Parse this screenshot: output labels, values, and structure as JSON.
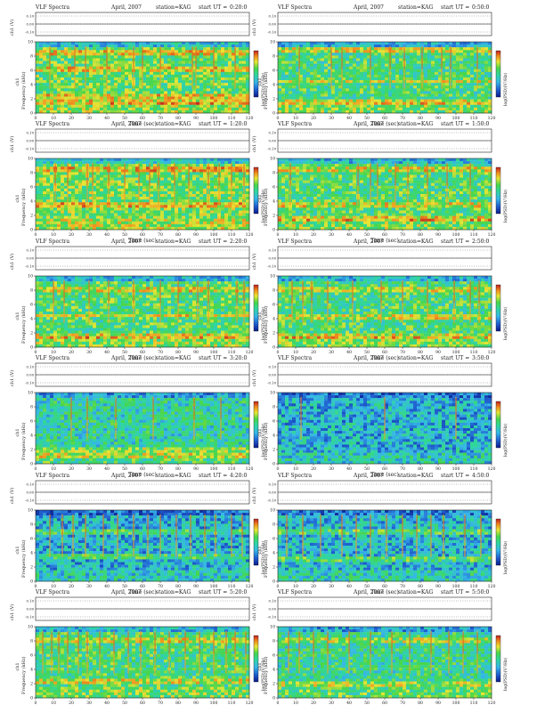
{
  "colors": {
    "background": "#ffffff",
    "axis": "#222222",
    "colormap": [
      "#0a1a8c",
      "#1f5fd0",
      "#36b6e8",
      "#2fd6a0",
      "#49d64a",
      "#e7e534",
      "#f08c1e",
      "#c11e1e"
    ]
  },
  "common": {
    "title_left": "VLF Spectra",
    "date": "April, 2007",
    "station": "station=KAG",
    "start_label": "start UT =",
    "ch1_label": "ch1 (V)",
    "ch1_ticks": [
      "0.10",
      "0.00",
      "-0.10"
    ],
    "freq_label": "Frequency (kHz)",
    "ch1_prefix": "ch1",
    "time_label": "Time (sec)",
    "colorbar_label": "log(PSD)(V²/Hz)"
  },
  "chart_data": [
    {
      "type": "heatmap",
      "panel": "left-row1",
      "start_ut": "0:20:0",
      "x_range": [
        0,
        120
      ],
      "y_range": [
        0,
        10
      ],
      "ch1_range": [
        -0.1,
        0.1
      ],
      "xticks": [
        0,
        10,
        20,
        30,
        40,
        50,
        60,
        70,
        80,
        90,
        100,
        110,
        120
      ],
      "yticks": [
        0,
        2,
        4,
        6,
        8,
        10
      ],
      "background_level": 0.55,
      "bands_khz": [
        1.6,
        2.3,
        6.0,
        8.6
      ],
      "bursts_sec": [
        8,
        22,
        28,
        40,
        55,
        60,
        70,
        88,
        90,
        100,
        112
      ]
    },
    {
      "type": "heatmap",
      "panel": "right-row1",
      "start_ut": "0:50:0",
      "x_range": [
        0,
        120
      ],
      "y_range": [
        0,
        10
      ],
      "ch1_range": [
        -0.1,
        0.1
      ],
      "xticks": [
        0,
        10,
        20,
        30,
        40,
        50,
        60,
        70,
        80,
        90,
        100,
        110,
        120
      ],
      "yticks": [
        0,
        2,
        4,
        6,
        8,
        10
      ],
      "background_level": 0.5,
      "bands_khz": [
        1.5,
        4.4,
        8.7
      ],
      "bursts_sec": [
        12,
        30,
        36,
        52,
        63,
        71,
        81,
        92,
        97,
        112
      ]
    },
    {
      "type": "heatmap",
      "panel": "left-row2",
      "start_ut": "1:20:0",
      "x_range": [
        0,
        120
      ],
      "y_range": [
        0,
        10
      ],
      "ch1_range": [
        -0.1,
        0.1
      ],
      "xticks": [
        0,
        10,
        20,
        30,
        40,
        50,
        60,
        70,
        80,
        90,
        100,
        110,
        120
      ],
      "yticks": [
        0,
        2,
        4,
        6,
        8,
        10
      ],
      "background_level": 0.58,
      "bands_khz": [
        3.4,
        8.6
      ],
      "bursts_sec": [
        11,
        18,
        29,
        32,
        41,
        50,
        58,
        64,
        69,
        78,
        86,
        97,
        103,
        110,
        117
      ]
    },
    {
      "type": "heatmap",
      "panel": "right-row2",
      "start_ut": "1:50:0",
      "x_range": [
        0,
        120
      ],
      "y_range": [
        0,
        10
      ],
      "ch1_range": [
        -0.1,
        0.1
      ],
      "xticks": [
        0,
        10,
        20,
        30,
        40,
        50,
        60,
        70,
        80,
        90,
        100,
        110,
        120
      ],
      "yticks": [
        0,
        2,
        4,
        6,
        8,
        10
      ],
      "background_level": 0.52,
      "bands_khz": [
        1.5,
        3.6,
        8.5
      ],
      "bursts_sec": [
        7,
        45,
        52,
        56,
        66,
        73,
        84,
        95,
        108
      ]
    },
    {
      "type": "heatmap",
      "panel": "left-row3",
      "start_ut": "2:20:0",
      "x_range": [
        0,
        120
      ],
      "y_range": [
        0,
        10
      ],
      "ch1_range": [
        -0.1,
        0.1
      ],
      "xticks": [
        0,
        10,
        20,
        30,
        40,
        50,
        60,
        70,
        80,
        90,
        100,
        110,
        120
      ],
      "yticks": [
        0,
        2,
        4,
        6,
        8,
        10
      ],
      "background_level": 0.52,
      "bands_khz": [
        1.5,
        4.4,
        8.1
      ],
      "bursts_sec": [
        10,
        16,
        30,
        41,
        55,
        70,
        80,
        91,
        97,
        113,
        117
      ]
    },
    {
      "type": "heatmap",
      "panel": "right-row3",
      "start_ut": "2:50:0",
      "x_range": [
        0,
        120
      ],
      "y_range": [
        0,
        10
      ],
      "ch1_range": [
        -0.1,
        0.1
      ],
      "xticks": [
        0,
        10,
        20,
        30,
        40,
        50,
        60,
        70,
        80,
        90,
        100,
        110,
        120
      ],
      "yticks": [
        0,
        2,
        4,
        6,
        8,
        10
      ],
      "background_level": 0.5,
      "bands_khz": [
        1.6,
        4.3,
        8.1
      ],
      "bursts_sec": [
        8,
        14,
        19,
        28,
        42,
        58,
        70,
        84,
        99,
        108,
        113
      ]
    },
    {
      "type": "heatmap",
      "panel": "left-row4",
      "start_ut": "3:20:0",
      "x_range": [
        0,
        120
      ],
      "y_range": [
        0,
        10
      ],
      "ch1_range": [
        -0.1,
        0.1
      ],
      "xticks": [
        0,
        10,
        20,
        30,
        40,
        50,
        60,
        70,
        80,
        90,
        100,
        110,
        120
      ],
      "yticks": [
        0,
        2,
        4,
        6,
        8,
        10
      ],
      "background_level": 0.42,
      "bands_khz": [
        1.0,
        2.0
      ],
      "bursts_sec": [
        20,
        29,
        45,
        66,
        89,
        104
      ]
    },
    {
      "type": "heatmap",
      "panel": "right-row4",
      "start_ut": "3:50:0",
      "x_range": [
        0,
        120
      ],
      "y_range": [
        0,
        10
      ],
      "ch1_range": [
        -0.1,
        0.1
      ],
      "xticks": [
        0,
        10,
        20,
        30,
        40,
        50,
        60,
        70,
        80,
        90,
        100,
        110,
        120
      ],
      "yticks": [
        0,
        2,
        4,
        6,
        8,
        10
      ],
      "background_level": 0.3,
      "bands_khz": [],
      "bursts_sec": [
        13,
        60,
        100
      ]
    },
    {
      "type": "heatmap",
      "panel": "left-row5",
      "start_ut": "4:20:0",
      "x_range": [
        0,
        120
      ],
      "y_range": [
        0,
        10
      ],
      "ch1_range": [
        -0.1,
        0.1
      ],
      "xticks": [
        0,
        10,
        20,
        30,
        40,
        50,
        60,
        70,
        80,
        90,
        100,
        110,
        120
      ],
      "yticks": [
        0,
        2,
        4,
        6,
        8,
        10
      ],
      "background_level": 0.3,
      "bands_khz": [
        3.5,
        7.0
      ],
      "bursts_sec": [
        8,
        15,
        21,
        28,
        38,
        46,
        55,
        63,
        70,
        79,
        87,
        95,
        101,
        110,
        116
      ]
    },
    {
      "type": "heatmap",
      "panel": "right-row5",
      "start_ut": "4:50:0",
      "x_range": [
        0,
        120
      ],
      "y_range": [
        0,
        10
      ],
      "ch1_range": [
        -0.1,
        0.1
      ],
      "xticks": [
        0,
        10,
        20,
        30,
        40,
        50,
        60,
        70,
        80,
        90,
        100,
        110,
        120
      ],
      "yticks": [
        0,
        2,
        4,
        6,
        8,
        10
      ],
      "background_level": 0.32,
      "bands_khz": [
        3.2,
        7.0
      ],
      "bursts_sec": [
        5,
        14,
        24,
        36,
        44,
        52,
        61,
        70,
        78,
        86,
        93,
        105,
        114
      ]
    },
    {
      "type": "heatmap",
      "panel": "left-row6",
      "start_ut": "5:20:0",
      "x_range": [
        0,
        120
      ],
      "y_range": [
        0,
        10
      ],
      "ch1_range": [
        -0.1,
        0.1
      ],
      "xticks": [
        0,
        10,
        20,
        30,
        40,
        50,
        60,
        70,
        80,
        90,
        100,
        110,
        120
      ],
      "yticks": [
        0,
        2,
        4,
        6,
        8,
        10
      ],
      "background_level": 0.5,
      "bands_khz": [
        2.2,
        8.0
      ],
      "bursts_sec": [
        4,
        9,
        13,
        18,
        24,
        29,
        36,
        44,
        52,
        59,
        67,
        75,
        84,
        92,
        100,
        107,
        112,
        118
      ]
    },
    {
      "type": "heatmap",
      "panel": "right-row6",
      "start_ut": "5:50:0",
      "x_range": [
        0,
        120
      ],
      "y_range": [
        0,
        10
      ],
      "ch1_range": [
        -0.1,
        0.1
      ],
      "xticks": [
        0,
        10,
        20,
        30,
        40,
        50,
        60,
        70,
        80,
        90,
        100,
        110,
        120
      ],
      "yticks": [
        0,
        2,
        4,
        6,
        8,
        10
      ],
      "background_level": 0.45,
      "bands_khz": [
        2.0,
        8.2
      ],
      "bursts_sec": [
        6,
        12,
        20,
        28,
        40,
        52,
        64,
        74,
        86,
        96,
        104,
        112
      ]
    }
  ]
}
